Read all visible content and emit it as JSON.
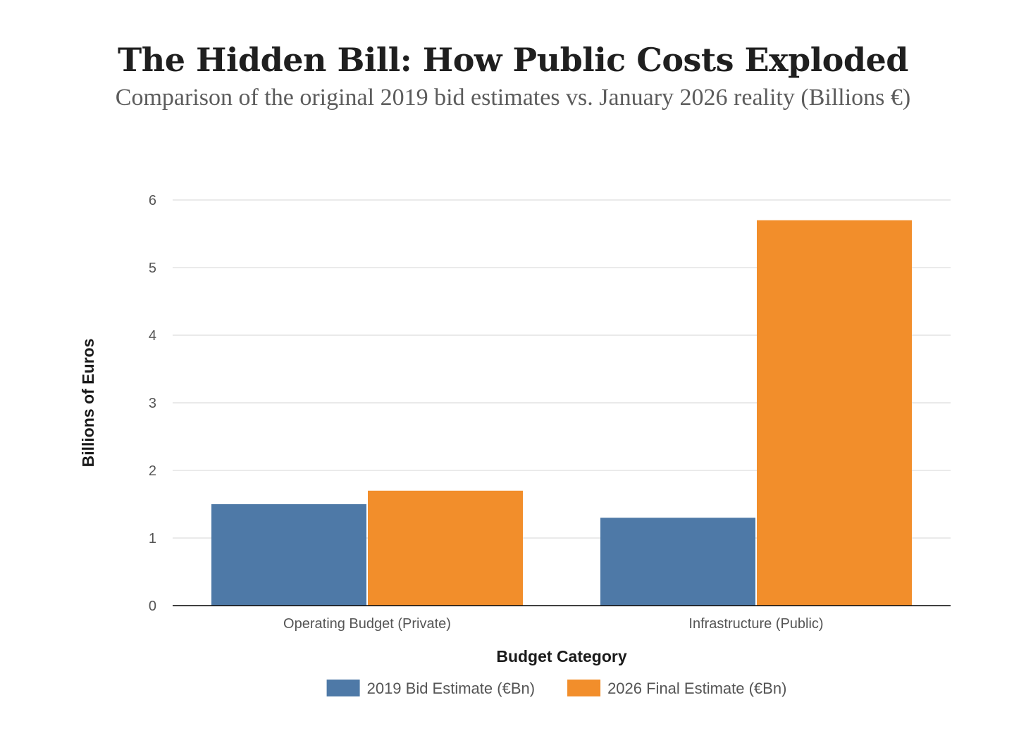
{
  "title": "The Hidden Bill: How Public Costs Exploded",
  "subtitle": "Comparison of the original 2019 bid estimates vs. January 2026 reality (Billions €)",
  "chart_data": {
    "type": "bar",
    "categories": [
      "Operating Budget (Private)",
      "Infrastructure (Public)"
    ],
    "series": [
      {
        "name": "2019 Bid Estimate (€Bn)",
        "values": [
          1.5,
          1.3
        ],
        "color": "#4e79a7"
      },
      {
        "name": "2026 Final Estimate (€Bn)",
        "values": [
          1.7,
          5.7
        ],
        "color": "#f28e2b"
      }
    ],
    "title": "The Hidden Bill: How Public Costs Exploded",
    "subtitle": "Comparison of the original 2019 bid estimates vs. January 2026 reality (Billions €)",
    "xlabel": "Budget Category",
    "ylabel": "Billions of Euros",
    "ylim": [
      0,
      6
    ],
    "yticks": [
      0,
      1,
      2,
      3,
      4,
      5,
      6
    ],
    "grid": true,
    "legend_position": "bottom"
  }
}
